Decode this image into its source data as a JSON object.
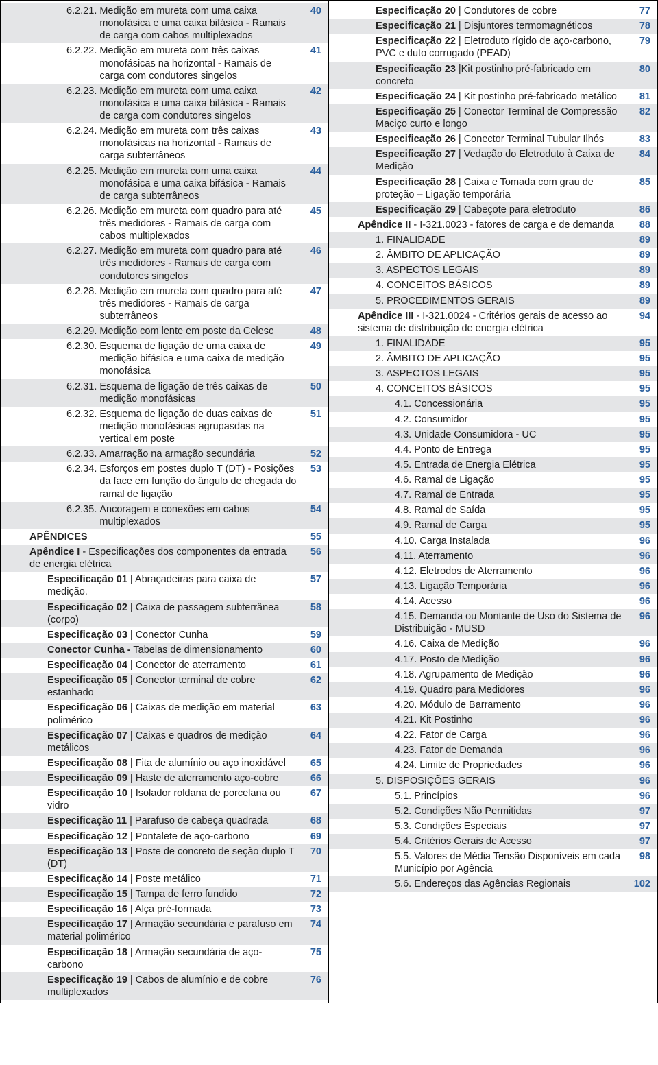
{
  "left": [
    {
      "shade": true,
      "indent": 2,
      "num": "6.2.21.",
      "text": "Medição em mureta com uma caixa monofásica e uma caixa bifásica - Ramais de carga com cabos multiplexados",
      "pg": "40"
    },
    {
      "shade": false,
      "indent": 2,
      "num": "6.2.22.",
      "text": "Medição em mureta com três caixas monofásicas na horizontal - Ramais de carga com condutores singelos",
      "pg": "41"
    },
    {
      "shade": true,
      "indent": 2,
      "num": "6.2.23.",
      "text": "Medição em mureta com uma caixa monofásica e uma caixa bifásica -  Ramais de carga com condutores singelos",
      "pg": "42"
    },
    {
      "shade": false,
      "indent": 2,
      "num": "6.2.24.",
      "text": "Medição em mureta com três caixas monofásicas na horizontal - Ramais de carga subterrâneos",
      "pg": "43"
    },
    {
      "shade": true,
      "indent": 2,
      "num": "6.2.25.",
      "text": "Medição em mureta com uma caixa monofásica e uma caixa bifásica -  Ramais de carga subterrâneos",
      "pg": "44"
    },
    {
      "shade": false,
      "indent": 2,
      "num": "6.2.26.",
      "text": "Medição em mureta com quadro para até três medidores - Ramais de carga com cabos multiplexados",
      "pg": "45"
    },
    {
      "shade": true,
      "indent": 2,
      "num": "6.2.27.",
      "text": "Medição em mureta com quadro para até três medidores - Ramais de carga com condutores singelos",
      "pg": "46"
    },
    {
      "shade": false,
      "indent": 2,
      "num": "6.2.28.",
      "text": "Medição em mureta com quadro para até três medidores - Ramais de carga subterrâneos",
      "pg": "47"
    },
    {
      "shade": true,
      "indent": 2,
      "num": "6.2.29.",
      "text": "Medição com lente em poste da Celesc",
      "pg": "48"
    },
    {
      "shade": false,
      "indent": 2,
      "num": "6.2.30.",
      "text": "Esquema  de ligação de uma caixa de medição bifásica e uma caixa de medição monofásica",
      "pg": "49"
    },
    {
      "shade": true,
      "indent": 2,
      "num": "6.2.31.",
      "text": "Esquema de ligação de três caixas de medição monofásicas",
      "pg": "50"
    },
    {
      "shade": false,
      "indent": 2,
      "num": "6.2.32.",
      "text": "Esquema  de ligação de duas caixas de medição monofásicas agrupasdas na vertical em poste",
      "pg": "51"
    },
    {
      "shade": true,
      "indent": 2,
      "num": "6.2.33.",
      "text": "Amarração na armação secundária",
      "pg": "52"
    },
    {
      "shade": false,
      "indent": 2,
      "num": "6.2.34.",
      "text": "Esforços em postes duplo T (DT) - Posições da face em função do ângulo de chegada do ramal de ligação",
      "pg": "53"
    },
    {
      "shade": true,
      "indent": 2,
      "num": "6.2.35.",
      "text": "Ancoragem e conexões em cabos multiplexados",
      "pg": "54"
    },
    {
      "shade": false,
      "indent": 0,
      "boldLead": "APÊNDICES",
      "text": "",
      "pg": "55"
    },
    {
      "shade": true,
      "indent": 0,
      "boldLead": "Apêndice I",
      "text": " - Especificações dos componentes da entrada de energia elétrica",
      "pg": "56"
    },
    {
      "shade": false,
      "indent": 1,
      "boldLead": "Especificação 01",
      "text": " | Abraçadeiras para caixa de medição.",
      "pg": "57"
    },
    {
      "shade": true,
      "indent": 1,
      "boldLead": "Especificação 02",
      "text": " | Caixa de passagem subterrânea (corpo)",
      "pg": "58"
    },
    {
      "shade": false,
      "indent": 1,
      "boldLead": "Especificação 03",
      "text": " | Conector Cunha",
      "pg": "59"
    },
    {
      "shade": true,
      "indent": 1,
      "boldLead": "Conector Cunha -",
      "text": " Tabelas de dimensionamento",
      "pg": "60"
    },
    {
      "shade": false,
      "indent": 1,
      "boldLead": "Especificação 04",
      "text": " | Conector de aterramento",
      "pg": "61"
    },
    {
      "shade": true,
      "indent": 1,
      "boldLead": "Especificação 05",
      "text": " | Conector terminal de cobre estanhado",
      "pg": "62"
    },
    {
      "shade": false,
      "indent": 1,
      "boldLead": "Especificação 06",
      "text": " | Caixas de medição em material polimérico",
      "pg": "63"
    },
    {
      "shade": true,
      "indent": 1,
      "boldLead": "Especificação 07",
      "text": " | Caixas e quadros de medição metálicos",
      "pg": "64"
    },
    {
      "shade": false,
      "indent": 1,
      "boldLead": "Especificação 08",
      "text": " | Fita de alumínio ou aço inoxidável",
      "pg": "65"
    },
    {
      "shade": true,
      "indent": 1,
      "boldLead": "Especificação 09",
      "text": " | Haste de aterramento aço-cobre",
      "pg": "66"
    },
    {
      "shade": false,
      "indent": 1,
      "boldLead": "Especificação 10",
      "text": " | Isolador roldana de porcelana ou vidro",
      "pg": "67"
    },
    {
      "shade": true,
      "indent": 1,
      "boldLead": "Especificação 11",
      "text": " | Parafuso de cabeça quadrada",
      "pg": "68"
    },
    {
      "shade": false,
      "indent": 1,
      "boldLead": "Especificação 12",
      "text": " | Pontalete de aço-carbono",
      "pg": "69"
    },
    {
      "shade": true,
      "indent": 1,
      "boldLead": "Especificação 13",
      "text": " | Poste de concreto de seção duplo T (DT)",
      "pg": "70"
    },
    {
      "shade": false,
      "indent": 1,
      "boldLead": "Especificação 14",
      "text": " | Poste metálico",
      "pg": "71"
    },
    {
      "shade": true,
      "indent": 1,
      "boldLead": "Especificação 15",
      "text": " | Tampa de ferro fundido",
      "pg": "72"
    },
    {
      "shade": false,
      "indent": 1,
      "boldLead": "Especificação 16",
      "text": " | Alça pré-formada",
      "pg": "73"
    },
    {
      "shade": true,
      "indent": 1,
      "boldLead": "Especificação 17",
      "text": " | Armação secundária e parafuso em material polimérico",
      "pg": "74"
    },
    {
      "shade": false,
      "indent": 1,
      "boldLead": "Especificação 18",
      "text": " | Armação secundária de aço-carbono",
      "pg": "75"
    },
    {
      "shade": true,
      "indent": 1,
      "boldLead": "Especificação 19",
      "text": " | Cabos de alumínio e de cobre multiplexados",
      "pg": "76"
    }
  ],
  "right": [
    {
      "shade": false,
      "indent": 1,
      "boldLead": "Especificação 20",
      "text": " | Condutores de cobre",
      "pg": "77"
    },
    {
      "shade": true,
      "indent": 1,
      "boldLead": "Especificação 21",
      "text": " | Disjuntores termomagnéticos",
      "pg": "78"
    },
    {
      "shade": false,
      "indent": 1,
      "boldLead": "Especificação 22",
      "text": " | Eletroduto rígido de aço-carbono, PVC e duto corrugado (PEAD)",
      "pg": "79"
    },
    {
      "shade": true,
      "indent": 1,
      "boldLead": "Especificação 23",
      "text": " |Kit postinho pré-fabricado em concreto",
      "pg": "80"
    },
    {
      "shade": false,
      "indent": 1,
      "boldLead": "Especificação 24",
      "text": " | Kit postinho pré-fabricado metálico",
      "pg": "81"
    },
    {
      "shade": true,
      "indent": 1,
      "boldLead": "Especificação 25",
      "text": " | Conector Terminal de Compressão Maciço curto e longo",
      "pg": "82"
    },
    {
      "shade": false,
      "indent": 1,
      "boldLead": "Especificação 26",
      "text": " | Conector Terminal Tubular Ilhós",
      "pg": "83"
    },
    {
      "shade": true,
      "indent": 1,
      "boldLead": "Especificação 27",
      "text": " | Vedação do Eletroduto à Caixa de Medição",
      "pg": "84"
    },
    {
      "shade": false,
      "indent": 1,
      "boldLead": "Especificação 28",
      "text": " | Caixa e Tomada com grau de proteção – Ligação temporária",
      "pg": "85"
    },
    {
      "shade": true,
      "indent": 1,
      "boldLead": "Especificação 29",
      "text": " | Cabeçote para eletroduto",
      "pg": "86"
    },
    {
      "shade": false,
      "indent": 0,
      "boldLead": "Apêndice II",
      "text": " - I-321.0023 - fatores de carga e de demanda",
      "pg": "88"
    },
    {
      "shade": true,
      "indent": 1,
      "text": "1. FINALIDADE",
      "pg": "89"
    },
    {
      "shade": false,
      "indent": 1,
      "text": "2. ÂMBITO DE APLICAÇÃO",
      "pg": "89"
    },
    {
      "shade": true,
      "indent": 1,
      "text": "3. ASPECTOS LEGAIS",
      "pg": "89"
    },
    {
      "shade": false,
      "indent": 1,
      "text": "4. CONCEITOS BÁSICOS",
      "pg": "89"
    },
    {
      "shade": true,
      "indent": 1,
      "text": "5. PROCEDIMENTOS GERAIS",
      "pg": "89"
    },
    {
      "shade": false,
      "indent": 0,
      "boldLead": "Apêndice III",
      "text": " - I-321.0024 - Critérios gerais de acesso ao sistema de distribuição de energia elétrica",
      "pg": "94"
    },
    {
      "shade": true,
      "indent": 1,
      "text": "1. FINALIDADE",
      "pg": "95"
    },
    {
      "shade": false,
      "indent": 1,
      "text": "2. ÂMBITO DE APLICAÇÃO",
      "pg": "95"
    },
    {
      "shade": true,
      "indent": 1,
      "text": "3. ASPECTOS LEGAIS",
      "pg": "95"
    },
    {
      "shade": false,
      "indent": 1,
      "text": "4. CONCEITOS BÁSICOS",
      "pg": "95"
    },
    {
      "shade": true,
      "indent": 2,
      "text": "4.1. Concessionária",
      "pg": "95"
    },
    {
      "shade": false,
      "indent": 2,
      "text": "4.2. Consumidor",
      "pg": "95"
    },
    {
      "shade": true,
      "indent": 2,
      "text": "4.3. Unidade Consumidora - UC",
      "pg": "95"
    },
    {
      "shade": false,
      "indent": 2,
      "text": "4.4. Ponto de Entrega",
      "pg": "95"
    },
    {
      "shade": true,
      "indent": 2,
      "text": "4.5. Entrada de Energia Elétrica",
      "pg": "95"
    },
    {
      "shade": false,
      "indent": 2,
      "text": "4.6. Ramal de Ligação",
      "pg": "95"
    },
    {
      "shade": true,
      "indent": 2,
      "text": "4.7. Ramal de Entrada",
      "pg": "95"
    },
    {
      "shade": false,
      "indent": 2,
      "text": "4.8. Ramal de Saída",
      "pg": "95"
    },
    {
      "shade": true,
      "indent": 2,
      "text": "4.9. Ramal de Carga",
      "pg": "95"
    },
    {
      "shade": false,
      "indent": 2,
      "text": "4.10. Carga Instalada",
      "pg": "96"
    },
    {
      "shade": true,
      "indent": 2,
      "text": "4.11. Aterramento",
      "pg": "96"
    },
    {
      "shade": false,
      "indent": 2,
      "text": "4.12. Eletrodos de Aterramento",
      "pg": "96"
    },
    {
      "shade": true,
      "indent": 2,
      "text": "4.13. Ligação Temporária",
      "pg": "96"
    },
    {
      "shade": false,
      "indent": 2,
      "text": "4.14. Acesso",
      "pg": "96"
    },
    {
      "shade": true,
      "indent": 2,
      "text": "4.15. Demanda ou Montante de Uso do Sistema de Distribuição - MUSD",
      "pg": "96",
      "hang": true
    },
    {
      "shade": false,
      "indent": 2,
      "text": "4.16. Caixa de Medição",
      "pg": "96"
    },
    {
      "shade": true,
      "indent": 2,
      "text": "4.17. Posto de Medição",
      "pg": "96"
    },
    {
      "shade": false,
      "indent": 2,
      "text": "4.18. Agrupamento de Medição",
      "pg": "96"
    },
    {
      "shade": true,
      "indent": 2,
      "text": "4.19. Quadro para Medidores",
      "pg": "96"
    },
    {
      "shade": false,
      "indent": 2,
      "text": "4.20. Módulo de Barramento",
      "pg": "96"
    },
    {
      "shade": true,
      "indent": 2,
      "text": "4.21. Kit Postinho",
      "pg": "96"
    },
    {
      "shade": false,
      "indent": 2,
      "text": "4.22. Fator de Carga",
      "pg": "96"
    },
    {
      "shade": true,
      "indent": 2,
      "text": "4.23. Fator de Demanda",
      "pg": "96"
    },
    {
      "shade": false,
      "indent": 2,
      "text": "4.24. Limite de Propriedades",
      "pg": "96"
    },
    {
      "shade": true,
      "indent": 1,
      "text": "5. DISPOSIÇÕES GERAIS",
      "pg": "96"
    },
    {
      "shade": false,
      "indent": 2,
      "text": "5.1. Princípios",
      "pg": "96"
    },
    {
      "shade": true,
      "indent": 2,
      "text": "5.2. Condições Não Permitidas",
      "pg": "97"
    },
    {
      "shade": false,
      "indent": 2,
      "text": "5.3. Condições Especiais",
      "pg": "97"
    },
    {
      "shade": true,
      "indent": 2,
      "text": "5.4. Critérios Gerais de Acesso",
      "pg": "97"
    },
    {
      "shade": false,
      "indent": 2,
      "text": "5.5. Valores de Média Tensão Disponíveis em cada Município por Agência",
      "pg": "98",
      "hang": true
    },
    {
      "shade": true,
      "indent": 2,
      "text": "5.6. Endereços das Agências Regionais",
      "pg": "102"
    }
  ]
}
